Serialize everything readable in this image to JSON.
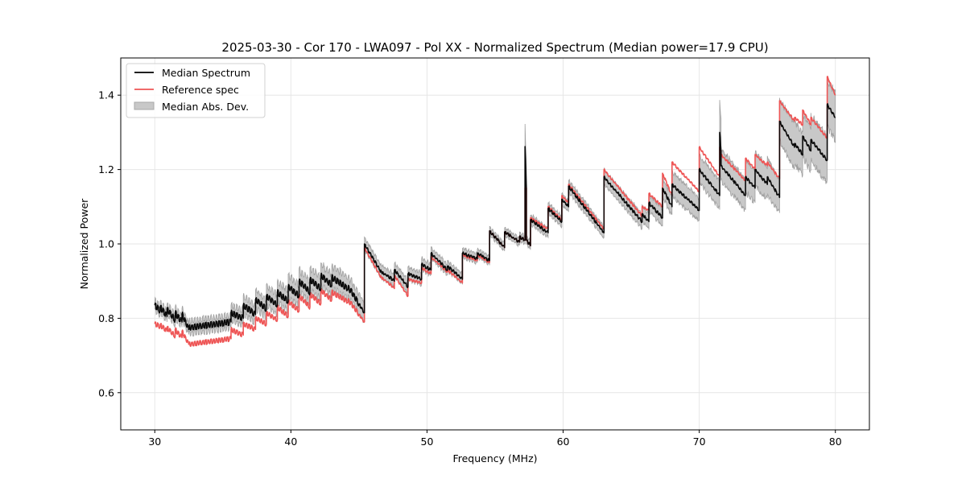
{
  "chart_data": {
    "type": "line",
    "title": "2025-03-30 - Cor 170 - LWA097 - Pol XX - Normalized Spectrum (Median power=17.9 CPU)",
    "xlabel": "Frequency (MHz)",
    "ylabel": "Normalized Power",
    "xlim": [
      27.5,
      82.5
    ],
    "ylim": [
      0.5,
      1.5
    ],
    "xticks": [
      30,
      40,
      50,
      60,
      70,
      80
    ],
    "xtick_labels": [
      "30",
      "40",
      "50",
      "60",
      "70",
      "80"
    ],
    "yticks": [
      0.6,
      0.8,
      1.0,
      1.2,
      1.4
    ],
    "ytick_labels": [
      "0.6",
      "0.8",
      "1.0",
      "1.2",
      "1.4"
    ],
    "grid": true,
    "legend": {
      "placement": "top-left",
      "entries": [
        {
          "label": "Median Spectrum",
          "kind": "line",
          "color": "#000000"
        },
        {
          "label": "Reference spec",
          "kind": "line",
          "color": "#ee5555"
        },
        {
          "label": "Median Abs. Dev.",
          "kind": "patch",
          "color": "#c8c8c8"
        }
      ]
    },
    "series_colors": {
      "median": "#000000",
      "reference": "#ee5555",
      "mad_fill": "#c8c8c8",
      "mad_edge": "#a0a0a0"
    },
    "note": "Spectrum approximated as piecewise sawtooth segments: [f_start, f_end, median_start, median_end, ref_start, ref_end, mad_halfwidth]",
    "segments": [
      [
        30.0,
        30.4,
        0.835,
        0.82,
        0.785,
        0.778,
        0.012
      ],
      [
        30.4,
        30.9,
        0.83,
        0.805,
        0.782,
        0.765,
        0.013
      ],
      [
        30.9,
        31.5,
        0.825,
        0.795,
        0.775,
        0.752,
        0.013
      ],
      [
        31.5,
        32.0,
        0.815,
        0.79,
        0.77,
        0.748,
        0.013
      ],
      [
        32.0,
        32.5,
        0.812,
        0.77,
        0.765,
        0.73,
        0.014
      ],
      [
        32.5,
        35.6,
        0.775,
        0.79,
        0.73,
        0.745,
        0.016
      ],
      [
        35.6,
        36.5,
        0.815,
        0.8,
        0.77,
        0.755,
        0.02
      ],
      [
        36.5,
        37.4,
        0.835,
        0.81,
        0.785,
        0.77,
        0.022
      ],
      [
        37.4,
        38.2,
        0.85,
        0.825,
        0.8,
        0.785,
        0.024
      ],
      [
        38.2,
        39.0,
        0.86,
        0.835,
        0.815,
        0.795,
        0.025
      ],
      [
        39.0,
        39.8,
        0.87,
        0.845,
        0.83,
        0.805,
        0.026
      ],
      [
        39.8,
        40.6,
        0.885,
        0.86,
        0.845,
        0.82,
        0.027
      ],
      [
        40.6,
        41.4,
        0.9,
        0.87,
        0.86,
        0.83,
        0.028
      ],
      [
        41.4,
        42.2,
        0.905,
        0.88,
        0.865,
        0.84,
        0.028
      ],
      [
        42.2,
        43.0,
        0.915,
        0.89,
        0.875,
        0.85,
        0.028
      ],
      [
        43.0,
        44.2,
        0.91,
        0.88,
        0.87,
        0.845,
        0.028
      ],
      [
        44.2,
        45.4,
        0.885,
        0.815,
        0.85,
        0.79,
        0.025
      ],
      [
        45.4,
        46.7,
        1.0,
        0.92,
        0.99,
        0.905,
        0.016
      ],
      [
        46.7,
        47.6,
        0.925,
        0.9,
        0.91,
        0.88,
        0.016
      ],
      [
        47.6,
        48.6,
        0.93,
        0.885,
        0.915,
        0.86,
        0.017
      ],
      [
        48.6,
        49.6,
        0.92,
        0.905,
        0.905,
        0.895,
        0.016
      ],
      [
        49.6,
        50.3,
        0.945,
        0.93,
        0.935,
        0.92,
        0.015
      ],
      [
        50.3,
        51.5,
        0.975,
        0.93,
        0.965,
        0.925,
        0.014
      ],
      [
        51.5,
        52.6,
        0.94,
        0.905,
        0.93,
        0.895,
        0.013
      ],
      [
        52.6,
        53.7,
        0.975,
        0.96,
        0.97,
        0.955,
        0.012
      ],
      [
        53.7,
        54.6,
        0.975,
        0.955,
        0.97,
        0.95,
        0.011
      ],
      [
        54.6,
        55.7,
        1.035,
        0.99,
        1.035,
        0.99,
        0.01
      ],
      [
        55.7,
        56.8,
        1.032,
        1.005,
        1.032,
        1.005,
        0.01
      ],
      [
        56.8,
        57.2,
        1.02,
        1.01,
        1.02,
        1.01,
        0.01
      ],
      [
        57.2,
        57.3,
        1.262,
        1.15,
        1.15,
        1.15,
        0.05
      ],
      [
        57.3,
        57.6,
        1.01,
        0.995,
        1.01,
        0.995,
        0.01
      ],
      [
        57.6,
        58.9,
        1.065,
        1.03,
        1.07,
        1.04,
        0.012
      ],
      [
        58.9,
        59.9,
        1.095,
        1.06,
        1.1,
        1.065,
        0.013
      ],
      [
        59.9,
        60.4,
        1.12,
        1.1,
        1.13,
        1.11,
        0.014
      ],
      [
        60.4,
        63.0,
        1.155,
        1.03,
        1.16,
        1.04,
        0.015
      ],
      [
        63.0,
        65.8,
        1.18,
        1.06,
        1.2,
        1.075,
        0.018
      ],
      [
        65.8,
        66.3,
        1.08,
        1.06,
        1.1,
        1.09,
        0.02
      ],
      [
        66.3,
        67.3,
        1.11,
        1.07,
        1.135,
        1.1,
        0.022
      ],
      [
        67.3,
        68.0,
        1.15,
        1.1,
        1.19,
        1.13,
        0.024
      ],
      [
        68.0,
        70.0,
        1.16,
        1.09,
        1.22,
        1.14,
        0.03
      ],
      [
        70.0,
        71.5,
        1.2,
        1.13,
        1.26,
        1.18,
        0.035
      ],
      [
        71.5,
        71.6,
        1.3,
        1.25,
        1.26,
        1.25,
        0.07
      ],
      [
        71.6,
        73.4,
        1.21,
        1.13,
        1.24,
        1.17,
        0.04
      ],
      [
        73.4,
        74.1,
        1.18,
        1.15,
        1.23,
        1.2,
        0.04
      ],
      [
        74.1,
        75.0,
        1.2,
        1.16,
        1.24,
        1.21,
        0.042
      ],
      [
        75.0,
        75.9,
        1.18,
        1.125,
        1.22,
        1.175,
        0.045
      ],
      [
        75.9,
        77.0,
        1.33,
        1.26,
        1.385,
        1.33,
        0.055
      ],
      [
        77.0,
        77.6,
        1.27,
        1.24,
        1.34,
        1.32,
        0.055
      ],
      [
        77.6,
        78.2,
        1.29,
        1.25,
        1.36,
        1.32,
        0.055
      ],
      [
        78.2,
        79.4,
        1.28,
        1.225,
        1.34,
        1.285,
        0.058
      ],
      [
        79.4,
        80.0,
        1.375,
        1.34,
        1.45,
        1.4,
        0.06
      ]
    ]
  }
}
